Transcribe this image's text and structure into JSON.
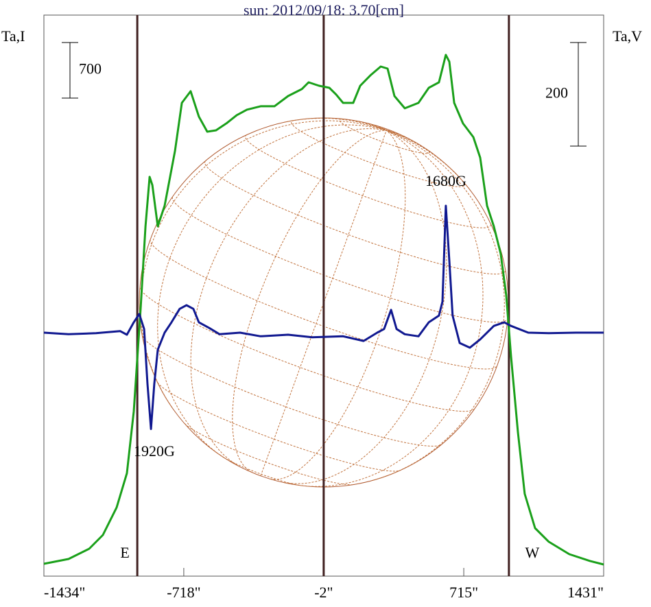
{
  "chart_data": {
    "type": "line",
    "title": "sun: 2012/09/18: 3.70[cm]",
    "ylabel": "Ta,I",
    "y2label": "Ta,V",
    "xlim": [
      -1434,
      1431
    ],
    "xticks": [
      {
        "value": -1434,
        "label": "-1434\""
      },
      {
        "value": -718,
        "label": "-718\""
      },
      {
        "value": -2,
        "label": "-2\""
      },
      {
        "value": 715,
        "label": "715\""
      },
      {
        "value": 1431,
        "label": "1431\""
      }
    ],
    "ylim": [
      -156,
      6914
    ],
    "y2lim": [
      -470,
      613
    ],
    "scale_bars": [
      {
        "value": 700
      },
      {
        "value": 200,
        "axis": "y2"
      }
    ],
    "vlines": [
      {
        "x": -956,
        "label": "E"
      },
      {
        "x": -2
      },
      {
        "x": 946,
        "label": "W"
      }
    ],
    "annotations": [
      "1920G",
      "1680G"
    ],
    "series": [
      {
        "name": "Ta,I",
        "color": "#1aa01a",
        "x": [
          -1434,
          -1308,
          -1202,
          -1132,
          -1062,
          -1009,
          -974,
          -939,
          -914,
          -893,
          -879,
          -851,
          -816,
          -763,
          -728,
          -683,
          -641,
          -598,
          -553,
          -500,
          -447,
          -395,
          -325,
          -254,
          -184,
          -114,
          -79,
          -26,
          27,
          62,
          97,
          149,
          185,
          237,
          290,
          325,
          360,
          413,
          483,
          536,
          588,
          623,
          641,
          666,
          711,
          764,
          799,
          834,
          869,
          904,
          932,
          957,
          992,
          1027,
          1080,
          1150,
          1255,
          1361,
          1431
        ],
        "values": [
          0,
          60,
          190,
          363,
          709,
          1141,
          1919,
          3215,
          4252,
          4875,
          4771,
          4252,
          4512,
          5203,
          5808,
          5955,
          5635,
          5445,
          5462,
          5549,
          5653,
          5722,
          5765,
          5765,
          5894,
          5981,
          6067,
          6024,
          5998,
          5912,
          5808,
          5808,
          6024,
          6154,
          6266,
          6240,
          5894,
          5739,
          5808,
          5998,
          6067,
          6413,
          6327,
          5808,
          5549,
          5376,
          5117,
          4512,
          4252,
          3907,
          3388,
          2610,
          1659,
          881,
          449,
          277,
          121,
          35,
          -9
        ]
      },
      {
        "name": "Ta,V",
        "color": "#101890",
        "axis": "y2",
        "x": [
          -1434,
          -1308,
          -1167,
          -1044,
          -1009,
          -974,
          -946,
          -921,
          -904,
          -886,
          -869,
          -851,
          -816,
          -781,
          -739,
          -704,
          -669,
          -641,
          -588,
          -535,
          -430,
          -325,
          -184,
          -61,
          97,
          202,
          272,
          307,
          343,
          371,
          413,
          483,
          536,
          588,
          606,
          623,
          641,
          658,
          694,
          746,
          799,
          869,
          922,
          957,
          1045,
          1150,
          1290,
          1431
        ],
        "values": [
          0,
          -3,
          -1,
          3,
          -4,
          20,
          36,
          7,
          -99,
          -186,
          -99,
          -33,
          0,
          20,
          46,
          53,
          46,
          20,
          9,
          -3,
          0,
          -7,
          -4,
          -9,
          -7,
          -16,
          0,
          7,
          44,
          7,
          -3,
          -7,
          20,
          33,
          60,
          245,
          139,
          33,
          -20,
          -29,
          -13,
          13,
          20,
          13,
          0,
          -1,
          0,
          0
        ]
      }
    ]
  }
}
